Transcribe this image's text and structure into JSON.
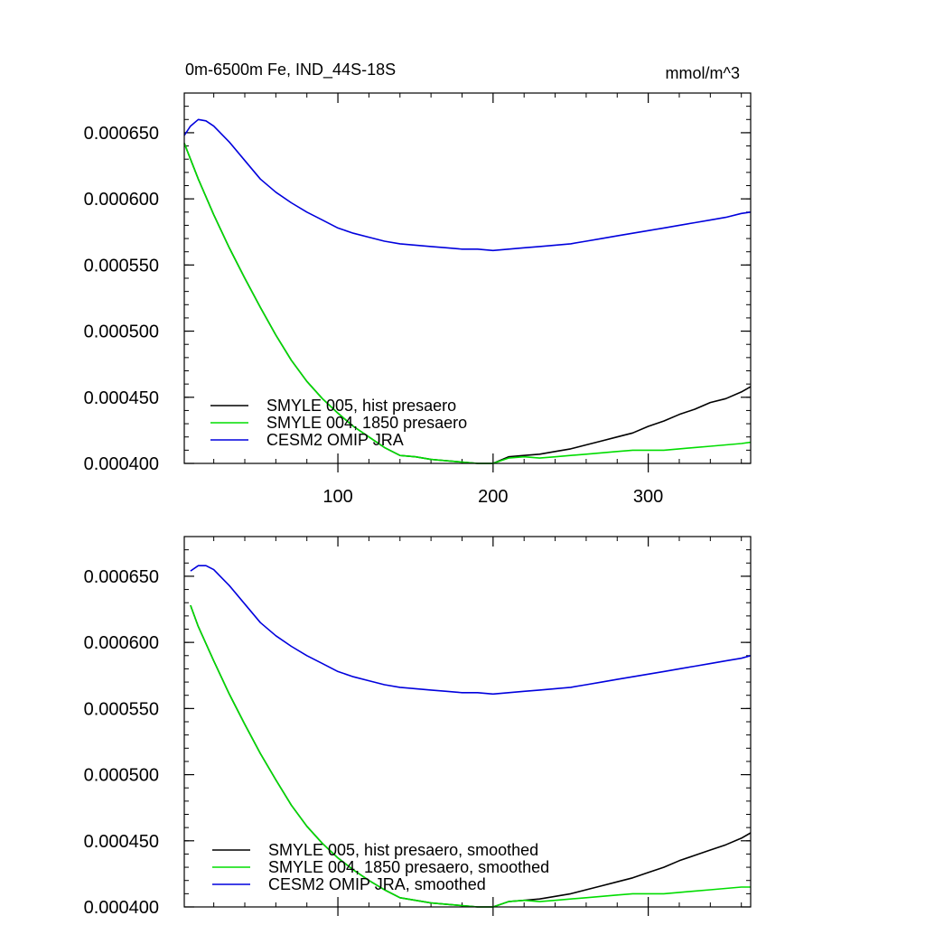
{
  "chart_data": [
    {
      "type": "line",
      "title": "0m-6500m Fe, IND_44S-18S",
      "units": "mmol/m^3",
      "xlim": [
        1,
        366
      ],
      "ylim": [
        0.0004,
        0.00068
      ],
      "yticks": [
        "0.000650",
        "0.000600",
        "0.000550",
        "0.000500",
        "0.000450",
        "0.000400"
      ],
      "xticks": [
        "100",
        "200",
        "300"
      ],
      "grid": false,
      "legend_position": "bottom-left",
      "series": [
        {
          "name": "SMYLE 005, hist presaero",
          "color": "#000000",
          "x": [
            1,
            10,
            20,
            30,
            40,
            50,
            60,
            70,
            80,
            90,
            100,
            110,
            120,
            130,
            140,
            150,
            160,
            170,
            180,
            190,
            200,
            210,
            220,
            230,
            240,
            250,
            260,
            270,
            280,
            290,
            300,
            310,
            320,
            330,
            340,
            350,
            360,
            366
          ],
          "y": [
            0.000642,
            0.000615,
            0.000588,
            0.000563,
            0.00054,
            0.000518,
            0.000497,
            0.000478,
            0.000462,
            0.000449,
            0.000438,
            0.000428,
            0.00042,
            0.000412,
            0.000406,
            0.000405,
            0.000403,
            0.000402,
            0.000401,
            0.0004,
            0.0004,
            0.000405,
            0.000406,
            0.000407,
            0.000409,
            0.000411,
            0.000414,
            0.000417,
            0.00042,
            0.000423,
            0.000428,
            0.000432,
            0.000437,
            0.000441,
            0.000446,
            0.000449,
            0.000454,
            0.000458
          ]
        },
        {
          "name": "SMYLE 004, 1850 presaero",
          "color": "#00dd00",
          "x": [
            1,
            10,
            20,
            30,
            40,
            50,
            60,
            70,
            80,
            90,
            100,
            110,
            120,
            130,
            140,
            150,
            160,
            170,
            180,
            190,
            200,
            210,
            220,
            230,
            240,
            250,
            260,
            270,
            280,
            290,
            300,
            310,
            320,
            330,
            340,
            350,
            360,
            366
          ],
          "y": [
            0.000642,
            0.000615,
            0.000588,
            0.000563,
            0.00054,
            0.000518,
            0.000497,
            0.000478,
            0.000462,
            0.000449,
            0.000438,
            0.000428,
            0.00042,
            0.000412,
            0.000406,
            0.000405,
            0.000403,
            0.000402,
            0.000401,
            0.0004,
            0.0004,
            0.000404,
            0.000405,
            0.000404,
            0.000405,
            0.000406,
            0.000407,
            0.000408,
            0.000409,
            0.00041,
            0.00041,
            0.00041,
            0.000411,
            0.000412,
            0.000413,
            0.000414,
            0.000415,
            0.000416
          ]
        },
        {
          "name": "CESM2 OMIP JRA",
          "color": "#0000dd",
          "x": [
            1,
            5,
            10,
            15,
            20,
            30,
            40,
            50,
            60,
            70,
            80,
            90,
            100,
            110,
            120,
            130,
            140,
            150,
            160,
            170,
            180,
            190,
            200,
            210,
            220,
            230,
            240,
            250,
            260,
            270,
            280,
            290,
            300,
            310,
            320,
            330,
            340,
            350,
            360,
            366
          ],
          "y": [
            0.000648,
            0.000655,
            0.00066,
            0.000659,
            0.000655,
            0.000643,
            0.000629,
            0.000615,
            0.000605,
            0.000597,
            0.00059,
            0.000584,
            0.000578,
            0.000574,
            0.000571,
            0.000568,
            0.000566,
            0.000565,
            0.000564,
            0.000563,
            0.000562,
            0.000562,
            0.000561,
            0.000562,
            0.000563,
            0.000564,
            0.000565,
            0.000566,
            0.000568,
            0.00057,
            0.000572,
            0.000574,
            0.000576,
            0.000578,
            0.00058,
            0.000582,
            0.000584,
            0.000586,
            0.000589,
            0.00059
          ]
        }
      ]
    },
    {
      "type": "line",
      "title": "",
      "units": "",
      "xlim": [
        1,
        366
      ],
      "ylim": [
        0.0004,
        0.00068
      ],
      "yticks": [
        "0.000650",
        "0.000600",
        "0.000550",
        "0.000500",
        "0.000450",
        "0.000400"
      ],
      "xticks": [],
      "grid": false,
      "legend_position": "bottom-left",
      "series": [
        {
          "name": "SMYLE 005, hist presaero, smoothed",
          "color": "#000000",
          "x": [
            5,
            10,
            20,
            30,
            40,
            50,
            60,
            70,
            80,
            90,
            100,
            110,
            120,
            130,
            140,
            150,
            160,
            170,
            180,
            190,
            200,
            210,
            220,
            230,
            240,
            250,
            260,
            270,
            280,
            290,
            300,
            310,
            320,
            330,
            340,
            350,
            360,
            366
          ],
          "y": [
            0.000628,
            0.000612,
            0.000586,
            0.000561,
            0.000538,
            0.000516,
            0.000496,
            0.000477,
            0.000461,
            0.000448,
            0.000437,
            0.000428,
            0.00042,
            0.000413,
            0.000407,
            0.000405,
            0.000403,
            0.000402,
            0.000401,
            0.0004,
            0.0004,
            0.000404,
            0.000405,
            0.000406,
            0.000408,
            0.00041,
            0.000413,
            0.000416,
            0.000419,
            0.000422,
            0.000426,
            0.00043,
            0.000435,
            0.000439,
            0.000443,
            0.000447,
            0.000452,
            0.000456
          ]
        },
        {
          "name": "SMYLE 004, 1850 presaero, smoothed",
          "color": "#00dd00",
          "x": [
            5,
            10,
            20,
            30,
            40,
            50,
            60,
            70,
            80,
            90,
            100,
            110,
            120,
            130,
            140,
            150,
            160,
            170,
            180,
            190,
            200,
            210,
            220,
            230,
            240,
            250,
            260,
            270,
            280,
            290,
            300,
            310,
            320,
            330,
            340,
            350,
            360,
            366
          ],
          "y": [
            0.000628,
            0.000612,
            0.000586,
            0.000561,
            0.000538,
            0.000516,
            0.000496,
            0.000477,
            0.000461,
            0.000448,
            0.000437,
            0.000428,
            0.00042,
            0.000413,
            0.000407,
            0.000405,
            0.000403,
            0.000402,
            0.000401,
            0.0004,
            0.0004,
            0.000404,
            0.000405,
            0.000404,
            0.000405,
            0.000406,
            0.000407,
            0.000408,
            0.000409,
            0.00041,
            0.00041,
            0.00041,
            0.000411,
            0.000412,
            0.000413,
            0.000414,
            0.000415,
            0.000415
          ]
        },
        {
          "name": "CESM2 OMIP JRA, smoothed",
          "color": "#0000dd",
          "x": [
            5,
            10,
            15,
            20,
            30,
            40,
            50,
            60,
            70,
            80,
            90,
            100,
            110,
            120,
            130,
            140,
            150,
            160,
            170,
            180,
            190,
            200,
            210,
            220,
            230,
            240,
            250,
            260,
            270,
            280,
            290,
            300,
            310,
            320,
            330,
            340,
            350,
            360,
            366
          ],
          "y": [
            0.000654,
            0.000658,
            0.000658,
            0.000655,
            0.000643,
            0.000629,
            0.000615,
            0.000605,
            0.000597,
            0.00059,
            0.000584,
            0.000578,
            0.000574,
            0.000571,
            0.000568,
            0.000566,
            0.000565,
            0.000564,
            0.000563,
            0.000562,
            0.000562,
            0.000561,
            0.000562,
            0.000563,
            0.000564,
            0.000565,
            0.000566,
            0.000568,
            0.00057,
            0.000572,
            0.000574,
            0.000576,
            0.000578,
            0.00058,
            0.000582,
            0.000584,
            0.000586,
            0.000588,
            0.00059
          ]
        }
      ]
    }
  ]
}
